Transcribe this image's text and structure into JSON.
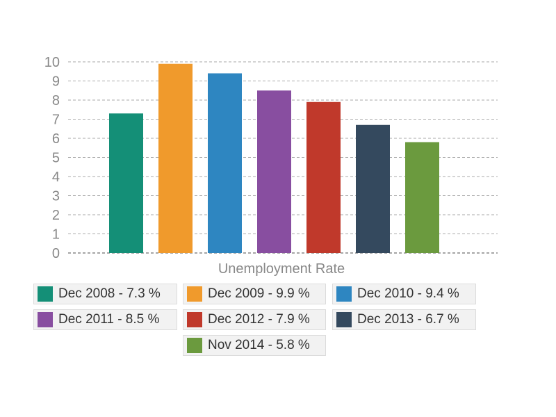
{
  "chart_data": {
    "type": "bar",
    "title": "",
    "xlabel": "Unemployment Rate",
    "ylabel": "",
    "ylim": [
      0,
      10
    ],
    "yticks": [
      "0",
      "1",
      "2",
      "3",
      "4",
      "5",
      "6",
      "7",
      "8",
      "9",
      "10"
    ],
    "grid": true,
    "legend_position": "bottom",
    "series": [
      {
        "name": "Dec 2008 - 7.3 %",
        "value": 7.3,
        "color": "#148f77"
      },
      {
        "name": "Dec 2009 - 9.9 %",
        "value": 9.9,
        "color": "#f09a2c"
      },
      {
        "name": "Dec 2010 - 9.4 %",
        "value": 9.4,
        "color": "#2e86c1"
      },
      {
        "name": "Dec 2011 - 8.5 %",
        "value": 8.5,
        "color": "#884ea0"
      },
      {
        "name": "Dec 2012 - 7.9 %",
        "value": 7.9,
        "color": "#c0392b"
      },
      {
        "name": "Dec 2013 - 6.7 %",
        "value": 6.7,
        "color": "#34495e"
      },
      {
        "name": "Nov 2014 - 5.8 %",
        "value": 5.8,
        "color": "#6b9a3e"
      }
    ]
  }
}
